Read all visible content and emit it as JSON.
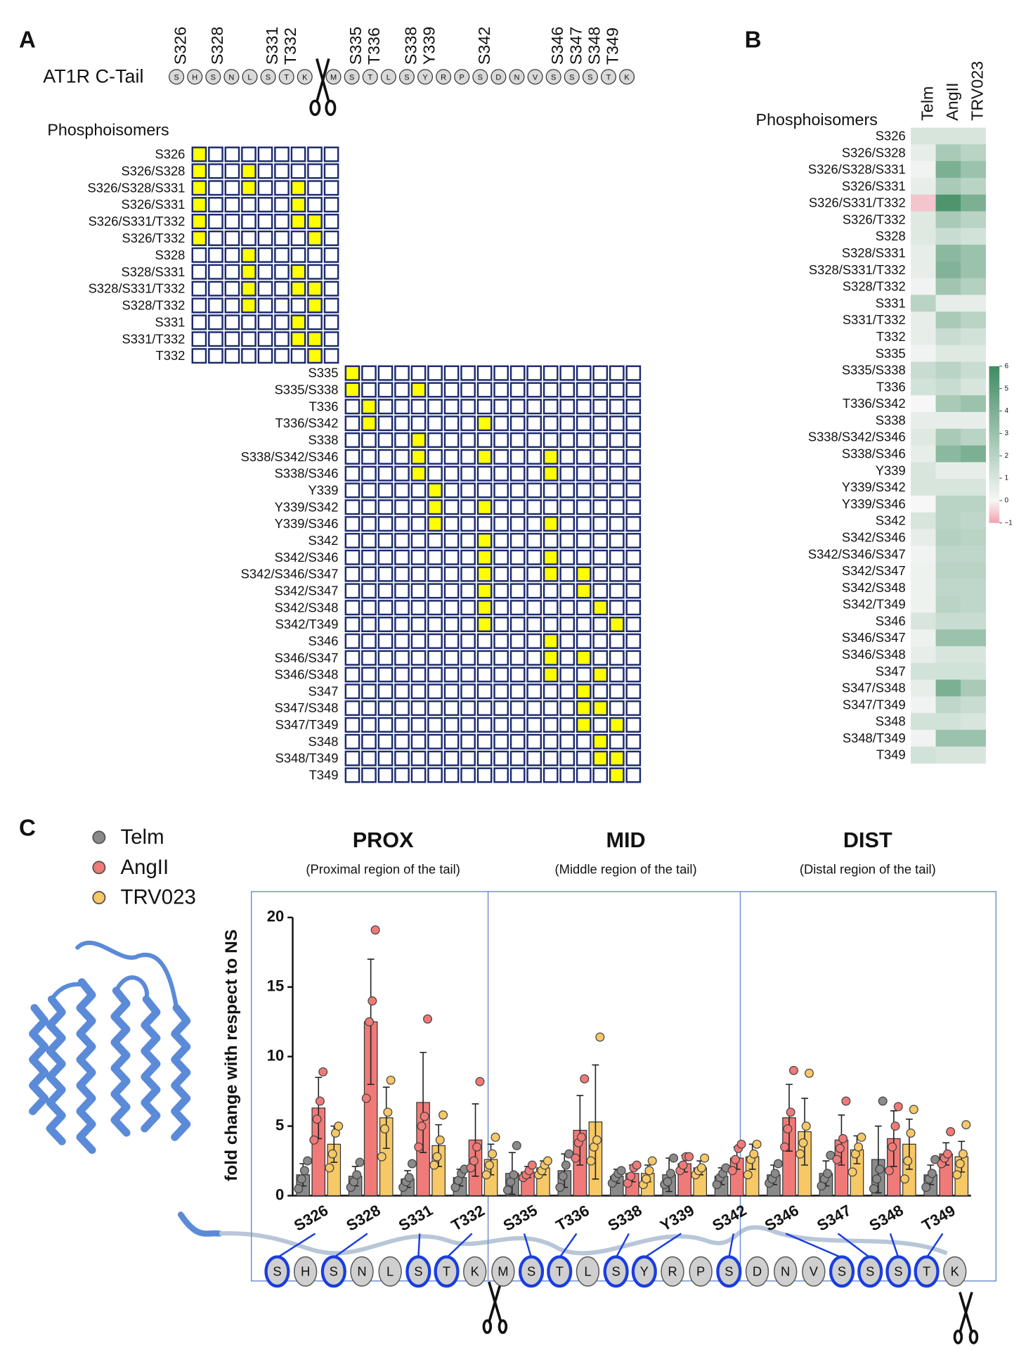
{
  "chart_data": [
    {
      "type": "matrix",
      "label": "A",
      "title": "AT1R C-Tail",
      "sequence": [
        "S",
        "H",
        "S",
        "N",
        "L",
        "S",
        "T",
        "K",
        "M",
        "S",
        "T",
        "L",
        "S",
        "Y",
        "R",
        "P",
        "S",
        "D",
        "N",
        "V",
        "S",
        "S",
        "S",
        "T",
        "K"
      ],
      "sites": [
        "S326",
        "S328",
        "S331",
        "T332",
        "S335",
        "T336",
        "S338",
        "Y339",
        "S342",
        "S346",
        "S347",
        "S348",
        "T349"
      ],
      "row_title": "Phosphoisomers",
      "rows": [
        "S326",
        "S326/S328",
        "S326/S328/S331",
        "S326/S331",
        "S326/S331/T332",
        "S326/T332",
        "S328",
        "S328/S331",
        "S328/S331/T332",
        "S328/T332",
        "S331",
        "S331/T332",
        "T332",
        "S335",
        "S335/S338",
        "T336",
        "T336/S342",
        "S338",
        "S338/S342/S346",
        "S338/S346",
        "Y339",
        "Y339/S342",
        "Y339/S346",
        "S342",
        "S342/S346",
        "S342/S346/S347",
        "S342/S347",
        "S342/S348",
        "S342/T349",
        "S346",
        "S346/S347",
        "S346/S348",
        "S347",
        "S347/S348",
        "S347/T349",
        "S348",
        "S348/T349",
        "T349"
      ],
      "title_color": "#1fa83a",
      "highlight_color": "#ffff00",
      "cell_color": "#1c2a6e"
    },
    {
      "type": "heatmap",
      "label": "B",
      "row_title": "Phosphoisomers",
      "columns": [
        "Telm",
        "AngII",
        "TRV023"
      ],
      "rows": [
        "S326",
        "S326/S328",
        "S326/S328/S331",
        "S326/S331",
        "S326/S331/T332",
        "S326/T332",
        "S328",
        "S328/S331",
        "S328/S331/T332",
        "S328/T332",
        "S331",
        "S331/T332",
        "T332",
        "S335",
        "S335/S338",
        "T336",
        "T336/S342",
        "S338",
        "S338/S342/S346",
        "S338/S346",
        "Y339",
        "Y339/S342",
        "Y339/S346",
        "S342",
        "S342/S346",
        "S342/S346/S347",
        "S342/S347",
        "S342/S348",
        "S342/T349",
        "S346",
        "S346/S347",
        "S346/S348",
        "S347",
        "S347/S348",
        "S347/T349",
        "S348",
        "S348/T349",
        "T349"
      ],
      "values": [
        [
          1,
          1,
          1
        ],
        [
          0.5,
          2.5,
          2
        ],
        [
          0.2,
          4,
          3
        ],
        [
          0.5,
          2.5,
          2
        ],
        [
          -0.6,
          5.5,
          4
        ],
        [
          0.8,
          2.5,
          2
        ],
        [
          0.8,
          1.5,
          1.2
        ],
        [
          0.5,
          3.5,
          3
        ],
        [
          0.5,
          3.8,
          3
        ],
        [
          0.2,
          2.8,
          2.2
        ],
        [
          2,
          0.5,
          0.5
        ],
        [
          0.5,
          2.5,
          2
        ],
        [
          0.5,
          1.5,
          1.2
        ],
        [
          0.2,
          0.8,
          0.8
        ],
        [
          1.5,
          2,
          1.5
        ],
        [
          1.2,
          1.5,
          1
        ],
        [
          0,
          2.5,
          3
        ],
        [
          0.5,
          0.5,
          0.5
        ],
        [
          0.8,
          2.5,
          2
        ],
        [
          0.5,
          3.5,
          4
        ],
        [
          1,
          0.5,
          0.5
        ],
        [
          1,
          1,
          1
        ],
        [
          0,
          2,
          2
        ],
        [
          1,
          2,
          1.8
        ],
        [
          0.5,
          2.2,
          2
        ],
        [
          0.2,
          1.8,
          1.8
        ],
        [
          0.3,
          2,
          2
        ],
        [
          0.3,
          1.8,
          1.8
        ],
        [
          0.3,
          2,
          1.8
        ],
        [
          1,
          1.5,
          1.5
        ],
        [
          0.3,
          3,
          3
        ],
        [
          0.5,
          1,
          1
        ],
        [
          1.2,
          1.2,
          1.2
        ],
        [
          0.5,
          4,
          2.5
        ],
        [
          0.2,
          1.8,
          1.5
        ],
        [
          1.2,
          1.2,
          1
        ],
        [
          0.2,
          3,
          3
        ],
        [
          1.2,
          1,
          1
        ]
      ],
      "zlim": [
        -1,
        6
      ],
      "zticks": [
        {
          "value": -1,
          "label": "−1"
        },
        0,
        1,
        2,
        3,
        4,
        5,
        6
      ],
      "colormap": [
        "#f2a3b0",
        "#f6f7f6",
        "#3f8c62"
      ]
    },
    {
      "type": "bar",
      "label": "C",
      "categories": [
        "S326",
        "S328",
        "S331",
        "T332",
        "S335",
        "T336",
        "S338",
        "Y339",
        "S342",
        "S346",
        "S347",
        "S348",
        "T349"
      ],
      "regions": [
        {
          "title": "PROX",
          "subtitle": "(Proximal region of the tail)"
        },
        {
          "title": "MID",
          "subtitle": "(Middle region of the tail)"
        },
        {
          "title": "DIST",
          "subtitle": "(Distal region of the tail)"
        }
      ],
      "region_color": "#3a62dc",
      "ylabel": "fold change with respect to NS",
      "ylim": [
        0,
        20
      ],
      "yticks": [
        0,
        5,
        10,
        15,
        20
      ],
      "sequence": [
        "S",
        "H",
        "S",
        "N",
        "L",
        "S",
        "T",
        "K",
        "M",
        "S",
        "T",
        "L",
        "S",
        "Y",
        "R",
        "P",
        "S",
        "D",
        "N",
        "V",
        "S",
        "S",
        "S",
        "T",
        "K"
      ],
      "series": [
        {
          "name": "Telm",
          "color": "#8a8a8a",
          "values": [
            1.5,
            1.4,
            1.2,
            1.3,
            1.6,
            1.8,
            1.4,
            1.5,
            1.4,
            1.5,
            1.6,
            2.6,
            1.5
          ],
          "errors": [
            0.8,
            0.7,
            0.6,
            0.6,
            1.5,
            1.2,
            0.5,
            1.2,
            0.6,
            0.7,
            0.9,
            2.4,
            0.7
          ],
          "points": [
            [
              0.5,
              1.2,
              1.8,
              2.5
            ],
            [
              0.6,
              1.0,
              1.5,
              2.4
            ],
            [
              0.6,
              1.0,
              1.3,
              2.3
            ],
            [
              0.6,
              1.1,
              1.6,
              1.9
            ],
            [
              0.4,
              1.0,
              1.5,
              3.6
            ],
            [
              0.6,
              1.4,
              2.2,
              3.0
            ],
            [
              0.9,
              1.3,
              1.6,
              1.8
            ],
            [
              0.8,
              1.0,
              1.6,
              2.7
            ],
            [
              0.8,
              1.3,
              1.6,
              2.0
            ],
            [
              0.9,
              1.2,
              1.6,
              2.3
            ],
            [
              0.7,
              1.2,
              1.6,
              2.9
            ],
            [
              0.5,
              1.2,
              1.9,
              6.8
            ],
            [
              0.6,
              1.2,
              1.6,
              2.6
            ]
          ]
        },
        {
          "name": "AngII",
          "color": "#f07a78",
          "values": [
            6.3,
            12.5,
            6.7,
            4.0,
            1.7,
            4.7,
            1.6,
            2.3,
            2.7,
            5.6,
            4.0,
            4.1,
            3.0
          ],
          "errors": [
            2.2,
            4.5,
            3.6,
            2.6,
            0.4,
            2.5,
            0.6,
            0.6,
            0.8,
            2.4,
            1.8,
            2.0,
            0.8
          ],
          "points": [
            [
              4.0,
              5.5,
              6.8,
              8.9
            ],
            [
              7.0,
              12.5,
              14.0,
              19.1
            ],
            [
              3.5,
              5.0,
              5.7,
              12.7
            ],
            [
              2.0,
              2.5,
              3.5,
              8.2
            ],
            [
              1.3,
              1.5,
              1.8,
              2.2
            ],
            [
              2.7,
              3.8,
              4.2,
              8.4
            ],
            [
              0.9,
              1.4,
              2.0,
              2.2
            ],
            [
              1.8,
              2.2,
              2.8,
              2.8
            ],
            [
              1.8,
              2.6,
              3.4,
              3.7
            ],
            [
              3.5,
              4.8,
              6.0,
              9.0
            ],
            [
              2.6,
              3.4,
              4.1,
              6.8
            ],
            [
              1.8,
              3.5,
              5.0,
              6.4
            ],
            [
              2.3,
              2.7,
              3.0,
              4.6
            ]
          ]
        },
        {
          "name": "TRV023",
          "color": "#f6c866",
          "values": [
            3.7,
            5.6,
            3.6,
            2.6,
            2.0,
            5.3,
            1.6,
            2.0,
            2.8,
            4.6,
            3.3,
            3.7,
            2.8
          ],
          "errors": [
            1.3,
            2.2,
            1.5,
            1.1,
            0.5,
            4.1,
            0.6,
            0.5,
            0.9,
            2.4,
            1.0,
            1.8,
            1.1
          ],
          "points": [
            [
              2.0,
              3.0,
              4.5,
              5.0
            ],
            [
              2.8,
              4.8,
              6.0,
              8.3
            ],
            [
              2.2,
              2.8,
              4.0,
              5.8
            ],
            [
              1.5,
              2.2,
              3.0,
              4.2
            ],
            [
              1.5,
              1.8,
              2.2,
              2.5
            ],
            [
              2.5,
              3.5,
              4.0,
              11.4
            ],
            [
              0.8,
              1.2,
              1.8,
              2.5
            ],
            [
              1.5,
              1.8,
              2.0,
              2.7
            ],
            [
              1.5,
              2.6,
              3.0,
              3.7
            ],
            [
              3.0,
              3.8,
              5.0,
              8.8
            ],
            [
              1.7,
              3.0,
              3.5,
              4.2
            ],
            [
              1.2,
              2.5,
              4.5,
              6.2
            ],
            [
              1.5,
              2.3,
              3.0,
              5.1
            ]
          ]
        }
      ]
    }
  ]
}
